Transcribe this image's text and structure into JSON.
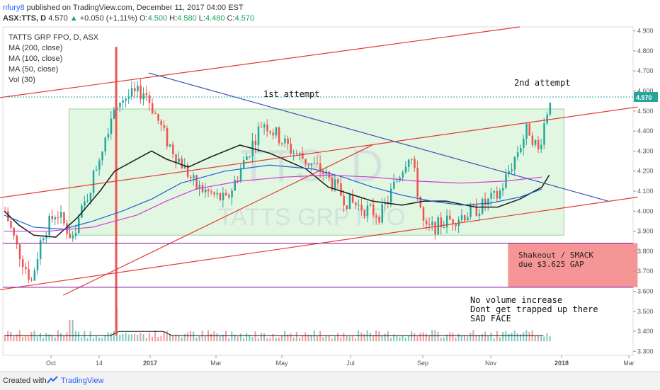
{
  "header": {
    "user": "nfury8",
    "published": "published on TradingView.com, December 11, 2017 04:00 EST",
    "symbol": "ASX:TTS, D",
    "last": "4.570",
    "change": "+0.050 (+1.11%)",
    "open_label": "O:",
    "open": "4.500",
    "high_label": "H:",
    "high": "4.580",
    "low_label": "L:",
    "low": "4.480",
    "close_label": "C:",
    "close": "4.570"
  },
  "legend": {
    "title": "TATTS GRP FPO, D, ASX",
    "ma200": "MA (200, close)",
    "ma100": "MA (100, close)",
    "ma50": "MA (50, close)",
    "vol": "Vol (30)"
  },
  "watermark": {
    "ticker": "TTS, D",
    "name": "TATTS GRP FPO"
  },
  "annotations": {
    "first": "1st attempt",
    "second": "2nd attempt",
    "shakeout_line1": "Shakeout / SMACK",
    "shakeout_line2": "due $3.625 GAP",
    "novol_line1": "No volume increase",
    "novol_line2": "Dont get trapped up there",
    "novol_line3": "SAD FACE"
  },
  "footer": {
    "created": "Created with",
    "brand": "TradingView"
  },
  "colors": {
    "up": "#26a69a",
    "down": "#ef5350",
    "trend": "#e53935",
    "blue": "#3f51b5",
    "purple": "#8e24aa",
    "ma50": "#222222",
    "ma100": "#1e63d6",
    "ma200": "#d63ad6",
    "box": "#c8f0c8",
    "shakeout": "#f48a8a"
  },
  "chart_data": {
    "type": "candlestick",
    "title": "TATTS GRP FPO, D, ASX",
    "ylim": [
      3.28,
      4.92
    ],
    "yticks": [
      "4.900",
      "4.800",
      "4.700",
      "4.600",
      "4.500",
      "4.400",
      "4.300",
      "4.200",
      "4.100",
      "4.000",
      "3.900",
      "3.800",
      "3.700",
      "3.600",
      "3.500",
      "3.400",
      "3.300"
    ],
    "x_labels": [
      "Oct",
      "14",
      "2017",
      "Mar",
      "May",
      "Jul",
      "Sep",
      "Nov",
      "2018",
      "Mar"
    ],
    "last_price_label": "4.570",
    "last_price": 4.57,
    "horizontal_lines": [
      3.84,
      3.62
    ],
    "series": [
      {
        "name": "MA (50, close)",
        "x": [
          0,
          10,
          20,
          35,
          50,
          65,
          75,
          90,
          100,
          110,
          125,
          140,
          160,
          180,
          205,
          220,
          250,
          270,
          285,
          300,
          320,
          335,
          350,
          365,
          370
        ],
        "y": [
          4.0,
          3.93,
          3.88,
          3.87,
          3.97,
          4.1,
          4.2,
          4.26,
          4.3,
          4.26,
          4.22,
          4.27,
          4.33,
          4.29,
          4.21,
          4.12,
          4.05,
          4.03,
          4.05,
          4.05,
          4.02,
          4.02,
          4.06,
          4.12,
          4.18
        ]
      },
      {
        "name": "MA (100, close)",
        "x": [
          0,
          20,
          40,
          60,
          80,
          100,
          120,
          150,
          180,
          210,
          230,
          250,
          270,
          290,
          310,
          330,
          350,
          365
        ],
        "y": [
          3.98,
          3.92,
          3.91,
          3.95,
          4.0,
          4.06,
          4.14,
          4.2,
          4.23,
          4.21,
          4.17,
          4.12,
          4.08,
          4.05,
          4.03,
          4.04,
          4.07,
          4.11
        ]
      },
      {
        "name": "MA (200, close)",
        "x": [
          0,
          30,
          60,
          90,
          110,
          130,
          160,
          190,
          220,
          250,
          280,
          310,
          340,
          365
        ],
        "y": [
          3.9,
          3.9,
          3.92,
          3.98,
          4.05,
          4.11,
          4.15,
          4.17,
          4.18,
          4.17,
          4.15,
          4.14,
          4.15,
          4.17
        ]
      }
    ],
    "trend_lines": [
      {
        "color": "trend",
        "from": [
          -10,
          4.56
        ],
        "to": [
          350,
          4.92
        ]
      },
      {
        "color": "trend",
        "from": [
          -10,
          4.06
        ],
        "to": [
          430,
          4.52
        ]
      },
      {
        "color": "trend",
        "from": [
          -10,
          3.6
        ],
        "to": [
          430,
          4.07
        ]
      },
      {
        "color": "trend",
        "from": [
          40,
          3.58
        ],
        "to": [
          250,
          4.33
        ]
      },
      {
        "color": "blue",
        "from": [
          98,
          4.69
        ],
        "to": [
          410,
          4.05
        ]
      }
    ],
    "shapes": {
      "green_box": {
        "x": [
          44,
          380
        ],
        "y": [
          3.88,
          4.51
        ]
      },
      "red_box": {
        "x": [
          342,
          430
        ],
        "y": [
          3.62,
          3.84
        ]
      }
    }
  }
}
